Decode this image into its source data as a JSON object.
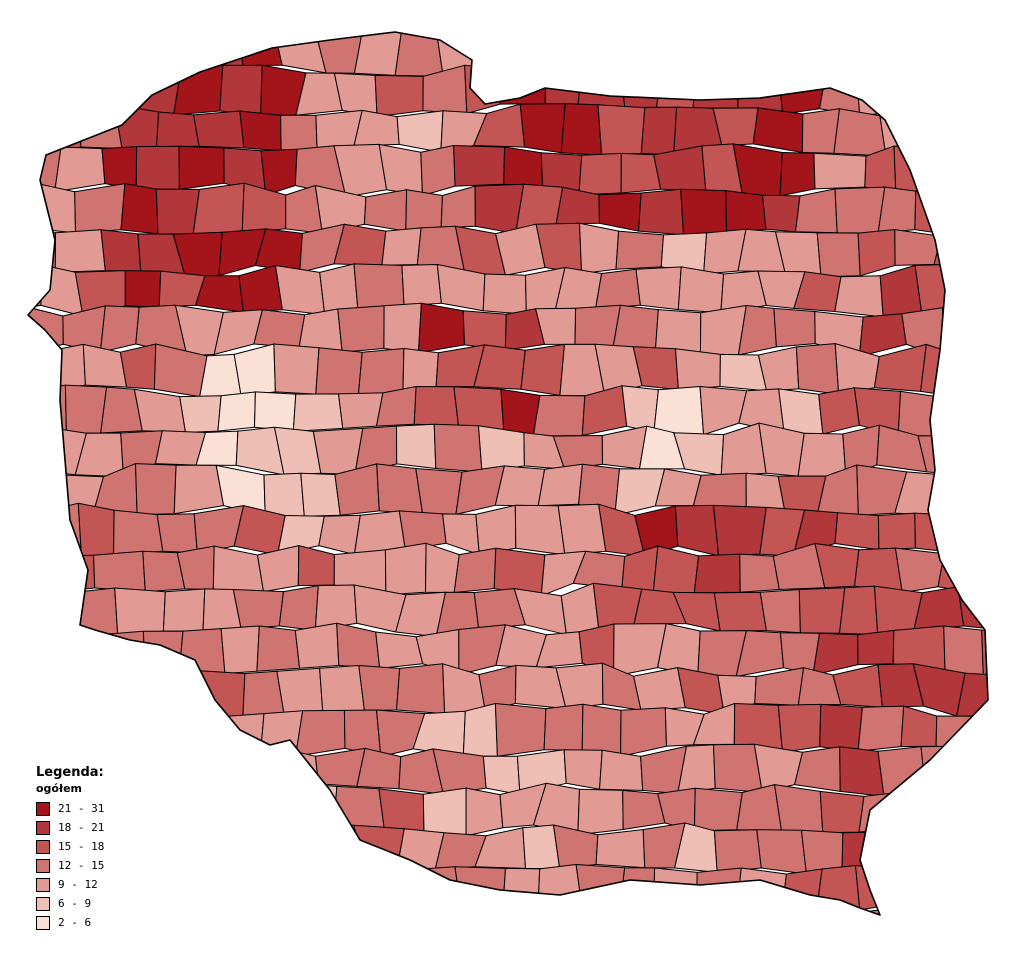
{
  "legend": {
    "title": "Legenda:",
    "subtitle": "ogółem",
    "classes": [
      {
        "label": "21 - 31",
        "color": "#a3141b"
      },
      {
        "label": "18 - 21",
        "color": "#b2373a"
      },
      {
        "label": "15 - 18",
        "color": "#c35555"
      },
      {
        "label": "12 - 15",
        "color": "#d07471"
      },
      {
        "label": "9 - 12",
        "color": "#e19b94"
      },
      {
        "label": "6 - 9",
        "color": "#efbfb5"
      },
      {
        "label": "2 - 6",
        "color": "#fbe0d6"
      }
    ]
  },
  "map": {
    "type": "choropleth",
    "palette_order": [
      "21 - 31",
      "18 - 21",
      "15 - 18",
      "12 - 15",
      "9 - 12",
      "6 - 9",
      "2 - 6"
    ]
  }
}
